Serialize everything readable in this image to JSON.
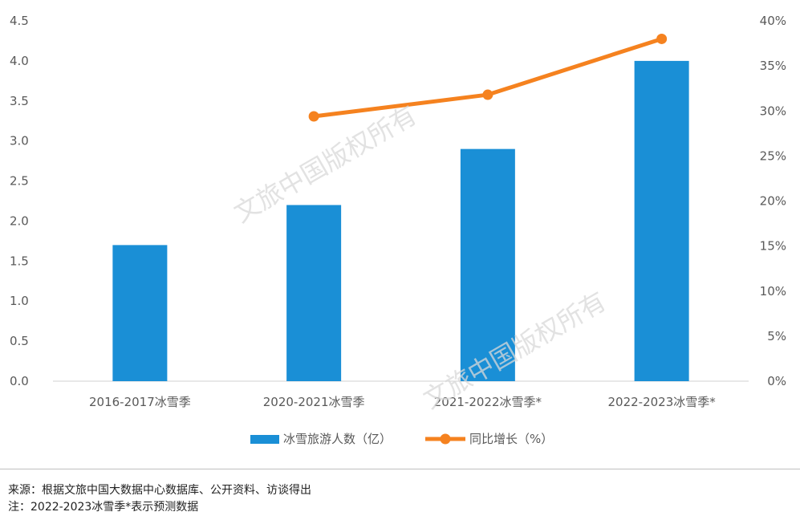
{
  "chart_data": {
    "type": "bar",
    "categories": [
      "2016-2017冰雪季",
      "2020-2021冰雪季",
      "2021-2022冰雪季*",
      "2022-2023冰雪季*"
    ],
    "series": [
      {
        "name": "冰雪旅游人数（亿）",
        "kind": "bar",
        "axis": "left",
        "color": "#1a8fd6",
        "values": [
          1.7,
          2.2,
          2.9,
          4.0
        ]
      },
      {
        "name": "同比增长（%）",
        "kind": "line",
        "axis": "right",
        "color": "#f5821f",
        "values": [
          null,
          29.4,
          31.8,
          38.0
        ]
      }
    ],
    "y_left": {
      "min": 0,
      "max": 4.5,
      "step": 0.5,
      "ticks": [
        "0.0",
        "0.5",
        "1.0",
        "1.5",
        "2.0",
        "2.5",
        "3.0",
        "3.5",
        "4.0",
        "4.5"
      ]
    },
    "y_right": {
      "min": 0,
      "max": 40,
      "step": 5,
      "ticks": [
        "0%",
        "5%",
        "10%",
        "15%",
        "20%",
        "25%",
        "30%",
        "35%",
        "40%"
      ]
    },
    "legend_position": "bottom",
    "grid": false
  },
  "watermark": "文旅中国版权所有",
  "footer": {
    "source": "来源：根据文旅中国大数据中心数据库、公开资料、访谈得出",
    "note": "注：2022-2023冰雪季*表示预测数据"
  }
}
